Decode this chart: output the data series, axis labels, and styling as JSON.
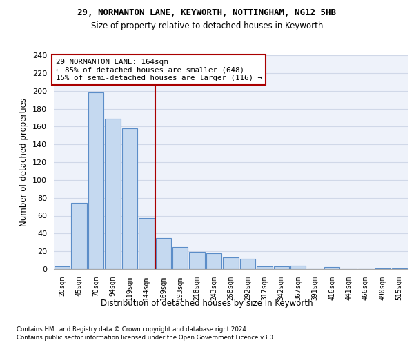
{
  "title1": "29, NORMANTON LANE, KEYWORTH, NOTTINGHAM, NG12 5HB",
  "title2": "Size of property relative to detached houses in Keyworth",
  "xlabel": "Distribution of detached houses by size in Keyworth",
  "ylabel": "Number of detached properties",
  "categories": [
    "20sqm",
    "45sqm",
    "70sqm",
    "94sqm",
    "119sqm",
    "144sqm",
    "169sqm",
    "193sqm",
    "218sqm",
    "243sqm",
    "268sqm",
    "292sqm",
    "317sqm",
    "342sqm",
    "367sqm",
    "391sqm",
    "416sqm",
    "441sqm",
    "466sqm",
    "490sqm",
    "515sqm"
  ],
  "values": [
    3,
    74,
    198,
    169,
    158,
    57,
    35,
    25,
    19,
    18,
    13,
    12,
    3,
    3,
    4,
    0,
    2,
    0,
    0,
    1,
    1
  ],
  "bar_color": "#c5d9f0",
  "bar_edge_color": "#5b8dc8",
  "annotation_line1": "29 NORMANTON LANE: 164sqm",
  "annotation_line2": "← 85% of detached houses are smaller (648)",
  "annotation_line3": "15% of semi-detached houses are larger (116) →",
  "annotation_box_color": "#ffffff",
  "annotation_box_edge": "#aa0000",
  "vline_color": "#aa0000",
  "footer1": "Contains HM Land Registry data © Crown copyright and database right 2024.",
  "footer2": "Contains public sector information licensed under the Open Government Licence v3.0.",
  "ylim": [
    0,
    240
  ],
  "yticks": [
    0,
    20,
    40,
    60,
    80,
    100,
    120,
    140,
    160,
    180,
    200,
    220,
    240
  ],
  "grid_color": "#d0d8e8",
  "bg_color": "#eef2fa"
}
